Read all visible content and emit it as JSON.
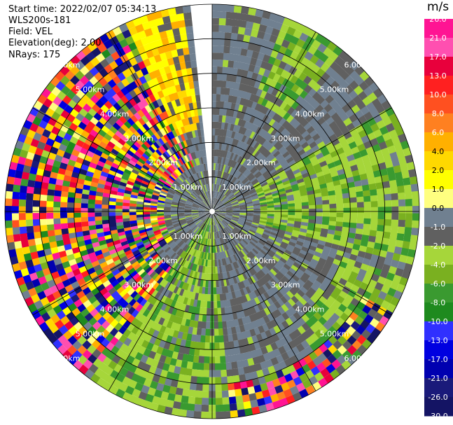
{
  "header": {
    "start_time": "Start time: 2022/02/07 05:34:13",
    "instrument": "WLS200s-181",
    "field": "Field: VEL",
    "elevation": "Elevation(deg): 2.00",
    "nrays": "NRays: 175"
  },
  "colorbar": {
    "unit": "m/s",
    "ticks": [
      "26.0",
      "21.0",
      "17.0",
      "13.0",
      "10.0",
      "8.0",
      "6.0",
      "4.0",
      "2.0",
      "1.0",
      "0.0",
      "-1.0",
      "-2.0",
      "-4.0",
      "-6.0",
      "-8.0",
      "-10.0",
      "-13.0",
      "-17.0",
      "-21.0",
      "-26.0",
      "-30.0"
    ],
    "colors": [
      "#ff1493",
      "#ff4fb0",
      "#e8003c",
      "#ff2020",
      "#ff5020",
      "#ff8020",
      "#ffb000",
      "#ffd800",
      "#ffff00",
      "#ffff80",
      "#708090",
      "#606060",
      "#a6d63a",
      "#7ab020",
      "#3a9a30",
      "#1e8a1e",
      "#3030ff",
      "#0000e0",
      "#0000b0",
      "#1a1a7a",
      "#141464"
    ]
  },
  "chart_data": {
    "type": "heatmap",
    "title": "",
    "field": "VEL",
    "units": "m/s",
    "range_rings_km": [
      1.0,
      2.0,
      3.0,
      4.0,
      5.0,
      6.0
    ],
    "ring_labels": [
      "1.00km",
      "2.00km",
      "3.00km",
      "4.00km",
      "5.00km",
      "6.00km"
    ],
    "max_range_km": 6.0,
    "elevation_deg": 2.0,
    "nrays": 175,
    "spokes_deg": [
      0,
      30,
      60,
      90,
      120,
      150,
      180,
      210,
      240,
      270,
      300,
      330
    ],
    "missing_sector_deg": [
      354,
      360
    ],
    "regions": [
      {
        "az": [
          0,
          30
        ],
        "r_km": [
          0,
          6
        ],
        "class": "gray",
        "note": "mostly near-zero velocity"
      },
      {
        "az": [
          20,
          40
        ],
        "r_km": [
          3.5,
          6
        ],
        "class": "green"
      },
      {
        "az": [
          60,
          105
        ],
        "r_km": [
          1.5,
          6
        ],
        "class": "green",
        "note": "band of -1 to -6 m/s"
      },
      {
        "az": [
          110,
          145
        ],
        "r_km": [
          4,
          6
        ],
        "class": "green"
      },
      {
        "az": [
          120,
          175
        ],
        "r_km": [
          5,
          6
        ],
        "class": "noise"
      },
      {
        "az": [
          175,
          215
        ],
        "r_km": [
          0.2,
          6
        ],
        "class": "green",
        "note": "-1 to -2 m/s"
      },
      {
        "az": [
          215,
          235
        ],
        "r_km": [
          2,
          6
        ],
        "class": "noise"
      },
      {
        "az": [
          235,
          340
        ],
        "r_km": [
          1.5,
          6
        ],
        "class": "noise",
        "note": "outer range noise"
      },
      {
        "az": [
          335,
          352
        ],
        "r_km": [
          2.5,
          6
        ],
        "class": "yellow",
        "note": "+2 to +6 m/s"
      }
    ]
  }
}
